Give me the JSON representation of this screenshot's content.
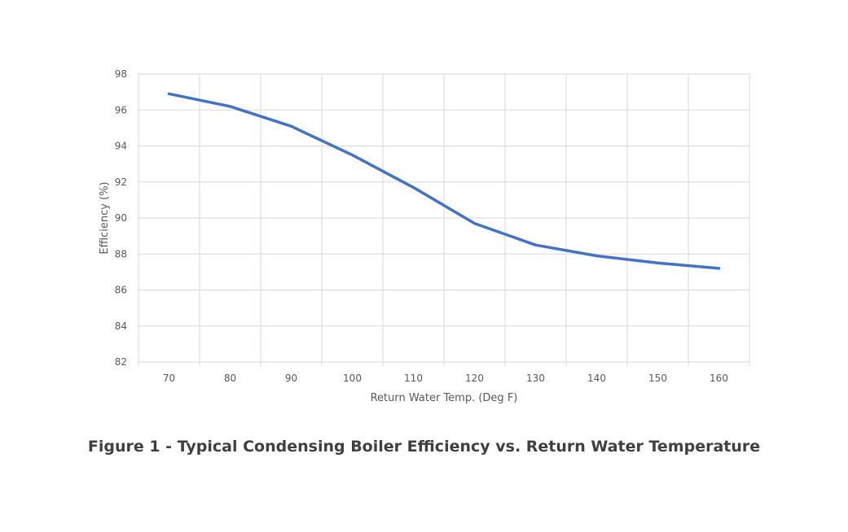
{
  "chart_data": {
    "type": "line",
    "title": "",
    "caption": "Figure 1 - Typical Condensing Boiler Efficiency vs. Return Water Temperature",
    "xlabel": "Return Water Temp. (Deg F)",
    "ylabel": "Efficiency (%)",
    "categories": [
      70,
      80,
      90,
      100,
      110,
      120,
      130,
      140,
      150,
      160
    ],
    "series": [
      {
        "name": "",
        "color": "#4472c4",
        "values": [
          96.9,
          96.2,
          95.1,
          93.5,
          91.7,
          89.7,
          88.5,
          87.9,
          87.5,
          87.2
        ]
      }
    ],
    "ylim": [
      82,
      98
    ],
    "yticks": [
      82,
      84,
      86,
      88,
      90,
      92,
      94,
      96,
      98
    ],
    "grid": true,
    "legend": "none"
  }
}
